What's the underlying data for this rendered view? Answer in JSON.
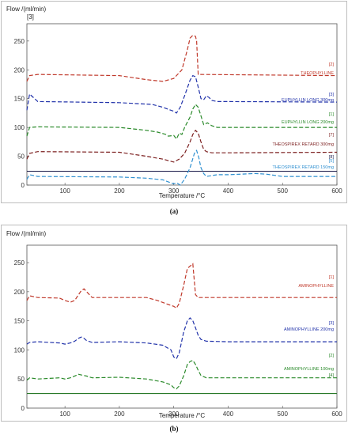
{
  "chart_data": [
    {
      "panel_label": "(a)",
      "type": "line",
      "ylabel": "Flow /(ml/min)",
      "y_extra_label": "[3]",
      "xlabel": "Temperature /°C",
      "xlim": [
        30,
        600
      ],
      "ylim": [
        0,
        280
      ],
      "x_ticks": [
        100,
        200,
        300,
        400,
        500,
        600
      ],
      "y_ticks": [
        0,
        50,
        100,
        150,
        200,
        250
      ],
      "grid": false,
      "series": [
        {
          "name": "THEOPHYLLINE",
          "tag": "[2]",
          "color": "#c0392b",
          "dashed": true,
          "x": [
            30,
            35,
            50,
            200,
            250,
            280,
            300,
            315,
            325,
            330,
            335,
            340,
            342,
            345,
            600
          ],
          "y": [
            180,
            190,
            192,
            190,
            183,
            180,
            185,
            200,
            235,
            255,
            260,
            258,
            250,
            192,
            190
          ]
        },
        {
          "name": "EUPHYLLIN LONG 300mg",
          "tag": "[3]",
          "color": "#2233aa",
          "dashed": true,
          "x": [
            30,
            35,
            50,
            200,
            260,
            280,
            300,
            305,
            312,
            320,
            330,
            335,
            340,
            345,
            350,
            355,
            360,
            365,
            370,
            380,
            400,
            600
          ],
          "y": [
            130,
            158,
            145,
            143,
            140,
            135,
            128,
            125,
            135,
            155,
            182,
            190,
            188,
            170,
            150,
            148,
            155,
            152,
            147,
            145,
            145,
            144
          ]
        },
        {
          "name": "EUPHYLLIN LONG 200mg",
          "tag": "[1]",
          "color": "#2a8a2a",
          "dashed": true,
          "x": [
            30,
            35,
            50,
            200,
            250,
            270,
            285,
            290,
            300,
            305,
            310,
            315,
            320,
            330,
            335,
            340,
            345,
            350,
            355,
            362,
            370,
            380,
            400,
            600
          ],
          "y": [
            85,
            100,
            101,
            100,
            95,
            92,
            88,
            85,
            86,
            80,
            90,
            88,
            100,
            118,
            132,
            140,
            135,
            120,
            105,
            108,
            103,
            100,
            100,
            100
          ]
        },
        {
          "name": "THEOSPIREX RETARD 300mg",
          "tag": "[7]",
          "color": "#7b1e1e",
          "dashed": true,
          "x": [
            30,
            35,
            50,
            200,
            250,
            280,
            300,
            310,
            320,
            330,
            335,
            340,
            345,
            350,
            355,
            360,
            370,
            400,
            600
          ],
          "y": [
            45,
            55,
            58,
            57,
            50,
            45,
            40,
            45,
            55,
            75,
            88,
            95,
            90,
            75,
            62,
            58,
            56,
            56,
            57
          ]
        },
        {
          "name": "",
          "tag": "[8]",
          "color": "#1a1a4a",
          "dashed": false,
          "x": [
            30,
            600
          ],
          "y": [
            24,
            24
          ]
        },
        {
          "name": "THEOSPIREX RETARD 150mg",
          "tag": "[5]",
          "color": "#2e8fd0",
          "dashed": true,
          "x": [
            30,
            35,
            50,
            200,
            250,
            280,
            300,
            305,
            312,
            320,
            330,
            338,
            342,
            346,
            350,
            355,
            360,
            380,
            400,
            450,
            470,
            500,
            600
          ],
          "y": [
            10,
            18,
            15,
            14,
            12,
            9,
            2,
            4,
            0,
            10,
            30,
            55,
            60,
            48,
            30,
            20,
            15,
            18,
            18,
            20,
            19,
            15,
            15
          ]
        }
      ]
    },
    {
      "panel_label": "(b)",
      "type": "line",
      "ylabel": "Flow /(ml/min)",
      "xlabel": "Temperature /°C",
      "xlim": [
        30,
        600
      ],
      "ylim": [
        0,
        280
      ],
      "x_ticks": [
        100,
        200,
        300,
        400,
        500,
        600
      ],
      "y_ticks": [
        0,
        50,
        100,
        150,
        200,
        250
      ],
      "grid": false,
      "series": [
        {
          "name": "AMINOPHYLLINE",
          "tag": "[1]",
          "color": "#c0392b",
          "dashed": true,
          "x": [
            30,
            35,
            50,
            90,
            100,
            110,
            118,
            125,
            130,
            135,
            140,
            150,
            160,
            250,
            270,
            290,
            300,
            305,
            310,
            318,
            325,
            335,
            340,
            345,
            600
          ],
          "y": [
            185,
            193,
            190,
            189,
            185,
            182,
            185,
            195,
            202,
            205,
            200,
            190,
            190,
            190,
            185,
            178,
            175,
            172,
            180,
            210,
            240,
            248,
            195,
            190,
            190
          ]
        },
        {
          "name": "AMINOPHYLLINE 200mg",
          "tag": "[3]",
          "color": "#2233aa",
          "dashed": true,
          "x": [
            30,
            35,
            50,
            90,
            100,
            110,
            118,
            125,
            130,
            135,
            140,
            150,
            200,
            250,
            280,
            295,
            300,
            305,
            310,
            318,
            325,
            330,
            335,
            340,
            345,
            350,
            360,
            400,
            600
          ],
          "y": [
            110,
            113,
            114,
            112,
            110,
            112,
            115,
            120,
            122,
            120,
            116,
            113,
            114,
            112,
            108,
            100,
            88,
            85,
            95,
            130,
            150,
            155,
            150,
            138,
            125,
            118,
            115,
            114,
            114
          ]
        },
        {
          "name": "AMINOPHYLLINE 100mg",
          "tag": "[2]",
          "color": "#2a8a2a",
          "dashed": true,
          "x": [
            30,
            35,
            50,
            90,
            100,
            110,
            120,
            125,
            130,
            140,
            150,
            200,
            250,
            280,
            295,
            300,
            305,
            310,
            318,
            325,
            330,
            335,
            340,
            345,
            350,
            360,
            400,
            600
          ],
          "y": [
            48,
            52,
            50,
            52,
            50,
            52,
            56,
            58,
            57,
            55,
            52,
            53,
            50,
            45,
            40,
            35,
            33,
            38,
            55,
            75,
            80,
            82,
            75,
            65,
            56,
            52,
            52,
            52
          ]
        },
        {
          "name": "",
          "tag": "[4]",
          "color": "#2a7a2a",
          "dashed": false,
          "x": [
            30,
            600
          ],
          "y": [
            25,
            25
          ]
        }
      ]
    }
  ]
}
